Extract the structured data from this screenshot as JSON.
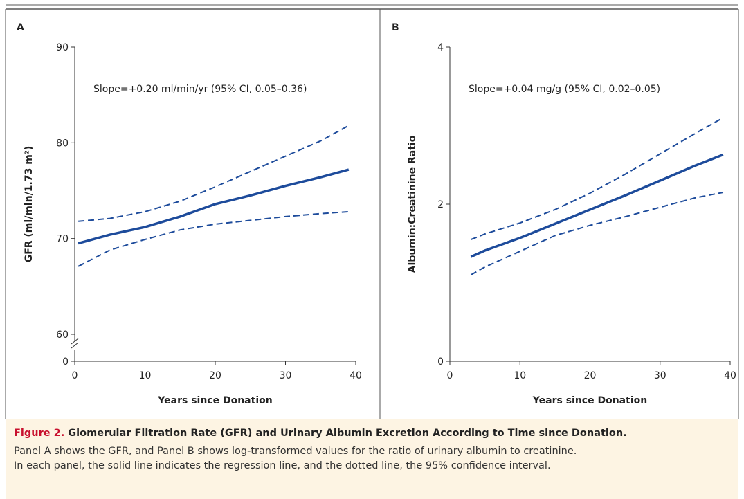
{
  "chart_data": [
    {
      "type": "line",
      "panel": "A",
      "annotation": "Slope=+0.20 ml/min/yr (95% CI, 0.05–0.36)",
      "x_label": "Years since Donation",
      "y_label": "GFR (ml/min/1.73 m²)",
      "xlim": [
        0,
        40
      ],
      "xticks": [
        0,
        10,
        20,
        30,
        40
      ],
      "ylim": [
        60,
        90
      ],
      "yticks": [
        0,
        60,
        70,
        80,
        90
      ],
      "axis_break": true,
      "x": [
        0.5,
        5,
        10,
        15,
        20,
        25,
        30,
        35,
        39
      ],
      "series": [
        {
          "color": "#1d4b9b",
          "style": "solid",
          "values": [
            69.5,
            70.4,
            71.2,
            72.3,
            73.6,
            74.5,
            75.5,
            76.4,
            77.2
          ]
        },
        {
          "color": "#1d4b9b",
          "style": "dashed",
          "values": [
            71.8,
            72.1,
            72.8,
            73.9,
            75.4,
            77.0,
            78.6,
            80.2,
            81.8
          ]
        },
        {
          "color": "#1d4b9b",
          "style": "dashed",
          "values": [
            67.1,
            68.8,
            69.9,
            70.9,
            71.5,
            71.9,
            72.3,
            72.6,
            72.8
          ]
        }
      ]
    },
    {
      "type": "line",
      "panel": "B",
      "annotation": "Slope=+0.04 mg/g (95% CI, 0.02–0.05)",
      "x_label": "Years since Donation",
      "y_label": "Albumin:Creatinine Ratio",
      "xlim": [
        0,
        40
      ],
      "xticks": [
        0,
        10,
        20,
        30,
        40
      ],
      "ylim": [
        0,
        4
      ],
      "yticks": [
        0,
        2,
        4
      ],
      "axis_break": false,
      "x": [
        3,
        5,
        10,
        15,
        20,
        25,
        30,
        35,
        39
      ],
      "series": [
        {
          "color": "#1d4b9b",
          "style": "solid",
          "values": [
            1.33,
            1.41,
            1.57,
            1.75,
            1.93,
            2.11,
            2.3,
            2.49,
            2.63
          ]
        },
        {
          "color": "#1d4b9b",
          "style": "dashed",
          "values": [
            1.55,
            1.62,
            1.76,
            1.93,
            2.14,
            2.38,
            2.64,
            2.9,
            3.1
          ]
        },
        {
          "color": "#1d4b9b",
          "style": "dashed",
          "values": [
            1.1,
            1.2,
            1.4,
            1.6,
            1.73,
            1.84,
            1.96,
            2.08,
            2.15
          ]
        }
      ]
    }
  ],
  "caption": {
    "label": "Figure 2.",
    "title": "Glomerular Filtration Rate (GFR) and Urinary Albumin Excretion According to Time since Donation.",
    "lines": [
      "Panel A shows the GFR, and Panel B shows log-transformed values for the ratio of urinary albumin to creatinine.",
      "In each panel, the solid line indicates the regression line, and the dotted line, the 95% confidence interval."
    ]
  }
}
